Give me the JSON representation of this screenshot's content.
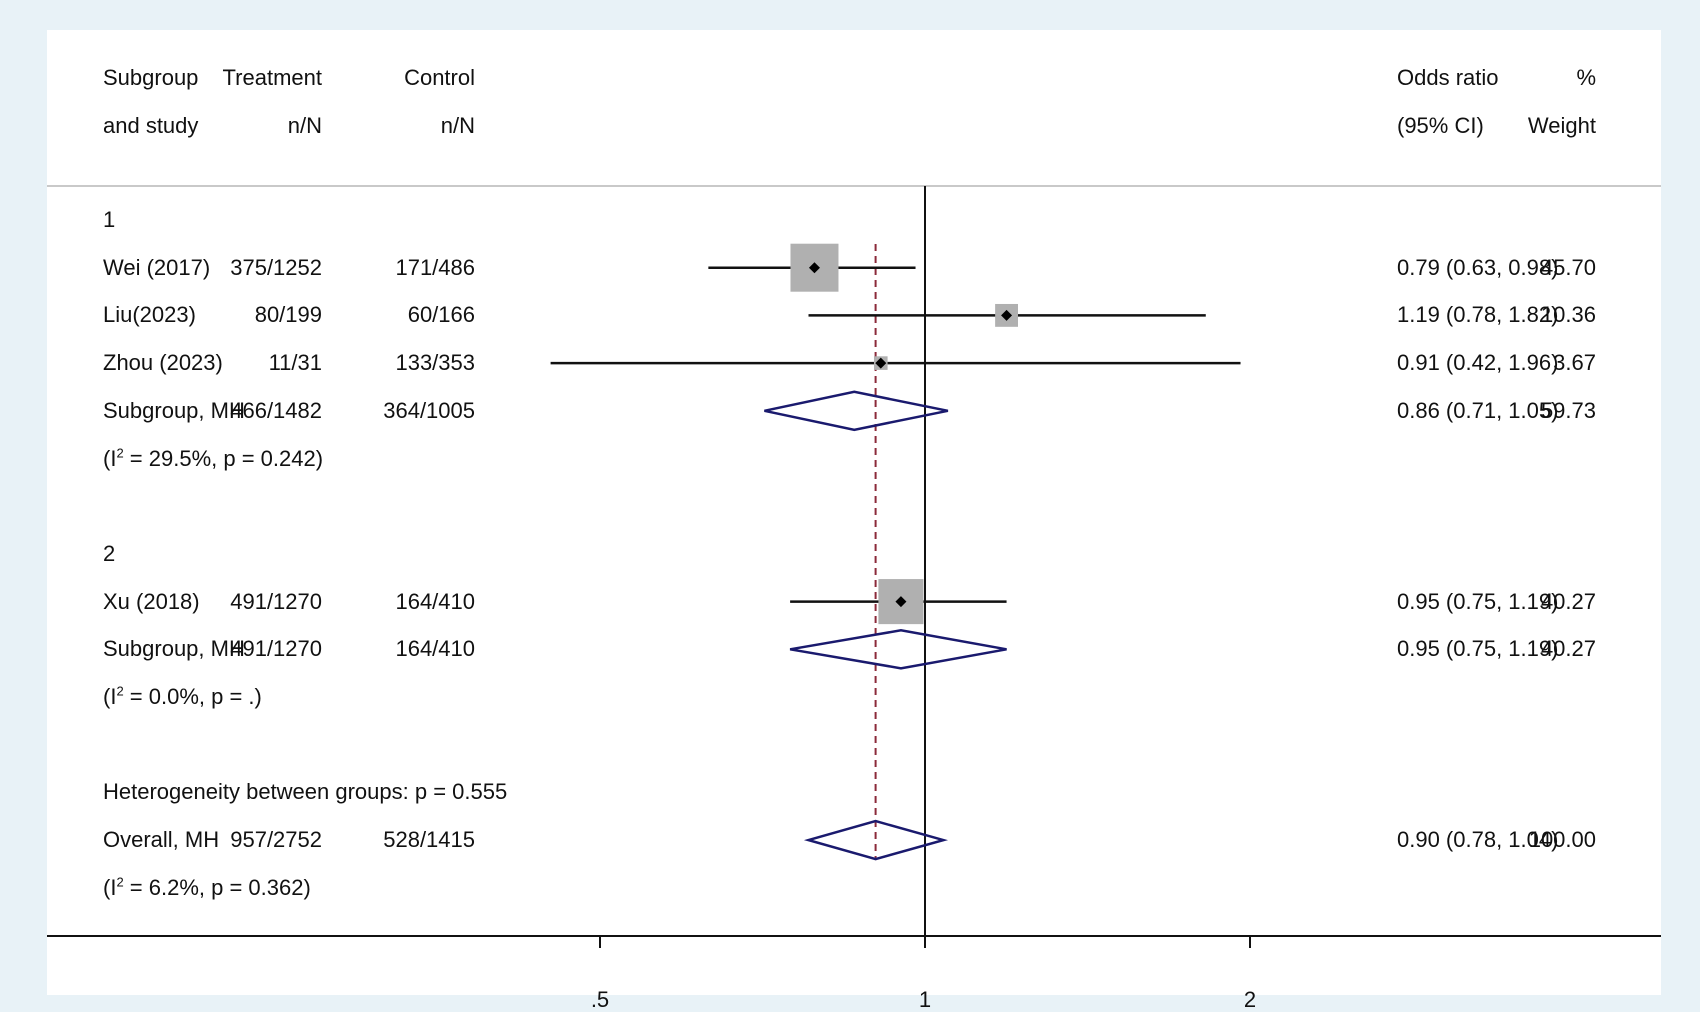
{
  "header": {
    "subgroup_line1": "Subgroup",
    "subgroup_line2": "and study",
    "treatment_line1": "Treatment",
    "treatment_line2": "n/N",
    "control_line1": "Control",
    "control_line2": "n/N",
    "or_line1": "Odds ratio",
    "or_line2": "(95% CI)",
    "weight_line1": "%",
    "weight_line2": "Weight"
  },
  "chart_data": {
    "type": "forest",
    "xscale": "log",
    "xlim": [
      0.4,
      2.5
    ],
    "xticks": [
      {
        "value": 0.5,
        "label": ".5"
      },
      {
        "value": 1,
        "label": "1"
      },
      {
        "value": 2,
        "label": "2"
      }
    ],
    "null_line": 1,
    "overall_line": 0.9,
    "colors": {
      "box": "#b0b0b0",
      "diamond": "#1a1a6e",
      "overall_line": "#8b2a3a",
      "line": "#111111",
      "background": "#e8f2f7"
    },
    "rows": [
      {
        "kind": "group",
        "label": "1"
      },
      {
        "kind": "study",
        "label": "Wei (2017)",
        "treatment": "375/1252",
        "control": "171/486",
        "or": 0.79,
        "lo": 0.63,
        "hi": 0.98,
        "or_text": "0.79 (0.63, 0.98)",
        "weight": 45.7,
        "weight_text": "45.70"
      },
      {
        "kind": "study",
        "label": "Liu(2023)",
        "treatment": "80/199",
        "control": "60/166",
        "or": 1.19,
        "lo": 0.78,
        "hi": 1.82,
        "or_text": "1.19 (0.78, 1.82)",
        "weight": 10.36,
        "weight_text": "10.36"
      },
      {
        "kind": "study",
        "label": "Zhou (2023)",
        "treatment": "11/31",
        "control": "133/353",
        "or": 0.91,
        "lo": 0.42,
        "hi": 1.96,
        "or_text": "0.91 (0.42, 1.96)",
        "weight": 3.67,
        "weight_text": "3.67"
      },
      {
        "kind": "summary",
        "label": "Subgroup, MH",
        "treatment": "466/1482",
        "control": "364/1005",
        "or": 0.86,
        "lo": 0.71,
        "hi": 1.05,
        "or_text": "0.86 (0.71, 1.05)",
        "weight": 59.73,
        "weight_text": "59.73"
      },
      {
        "kind": "het",
        "pre": "(I",
        "sup": "2",
        "post": " = 29.5%, p = 0.242)"
      },
      {
        "kind": "blank"
      },
      {
        "kind": "group",
        "label": "2"
      },
      {
        "kind": "study",
        "label": "Xu (2018)",
        "treatment": "491/1270",
        "control": "164/410",
        "or": 0.95,
        "lo": 0.75,
        "hi": 1.19,
        "or_text": "0.95 (0.75, 1.19)",
        "weight": 40.27,
        "weight_text": "40.27"
      },
      {
        "kind": "summary",
        "label": "Subgroup, MH",
        "treatment": "491/1270",
        "control": "164/410",
        "or": 0.95,
        "lo": 0.75,
        "hi": 1.19,
        "or_text": "0.95 (0.75, 1.19)",
        "weight": 40.27,
        "weight_text": "40.27"
      },
      {
        "kind": "het",
        "pre": "(I",
        "sup": "2",
        "post": " = 0.0%, p = .)"
      },
      {
        "kind": "blank"
      },
      {
        "kind": "note",
        "label": "Heterogeneity between groups: p = 0.555"
      },
      {
        "kind": "summary",
        "label": "Overall, MH",
        "treatment": "957/2752",
        "control": "528/1415",
        "or": 0.9,
        "lo": 0.78,
        "hi": 1.04,
        "or_text": "0.90 (0.78, 1.04)",
        "weight": 100.0,
        "weight_text": "100.00"
      },
      {
        "kind": "het",
        "pre": "(I",
        "sup": "2",
        "post": " = 6.2%, p = 0.362)"
      }
    ]
  }
}
